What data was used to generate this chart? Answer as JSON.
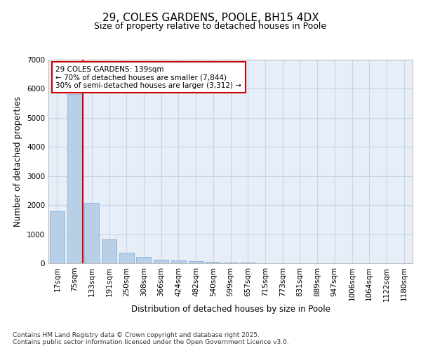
{
  "title_line1": "29, COLES GARDENS, POOLE, BH15 4DX",
  "title_line2": "Size of property relative to detached houses in Poole",
  "xlabel": "Distribution of detached houses by size in Poole",
  "ylabel": "Number of detached properties",
  "categories": [
    "17sqm",
    "75sqm",
    "133sqm",
    "191sqm",
    "250sqm",
    "308sqm",
    "366sqm",
    "424sqm",
    "482sqm",
    "540sqm",
    "599sqm",
    "657sqm",
    "715sqm",
    "773sqm",
    "831sqm",
    "889sqm",
    "947sqm",
    "1006sqm",
    "1064sqm",
    "1122sqm",
    "1180sqm"
  ],
  "values": [
    1780,
    5820,
    2080,
    820,
    370,
    220,
    130,
    100,
    75,
    50,
    30,
    15,
    10,
    0,
    0,
    0,
    0,
    0,
    0,
    0,
    0
  ],
  "bar_color": "#b8cfe8",
  "bar_edge_color": "#8ab0d8",
  "vline_color": "#cc0000",
  "box_text_line1": "29 COLES GARDENS: 139sqm",
  "box_text_line2": "← 70% of detached houses are smaller (7,844)",
  "box_text_line3": "30% of semi-detached houses are larger (3,312) →",
  "box_edge_color": "#cc0000",
  "ylim": [
    0,
    7000
  ],
  "yticks": [
    0,
    1000,
    2000,
    3000,
    4000,
    5000,
    6000,
    7000
  ],
  "grid_color": "#c8d4e8",
  "background_color": "#e8eef8",
  "footnote": "Contains HM Land Registry data © Crown copyright and database right 2025.\nContains public sector information licensed under the Open Government Licence v3.0.",
  "title_fontsize": 11,
  "subtitle_fontsize": 9,
  "axis_label_fontsize": 8.5,
  "tick_fontsize": 7.5,
  "annotation_fontsize": 7.5,
  "footnote_fontsize": 6.5
}
